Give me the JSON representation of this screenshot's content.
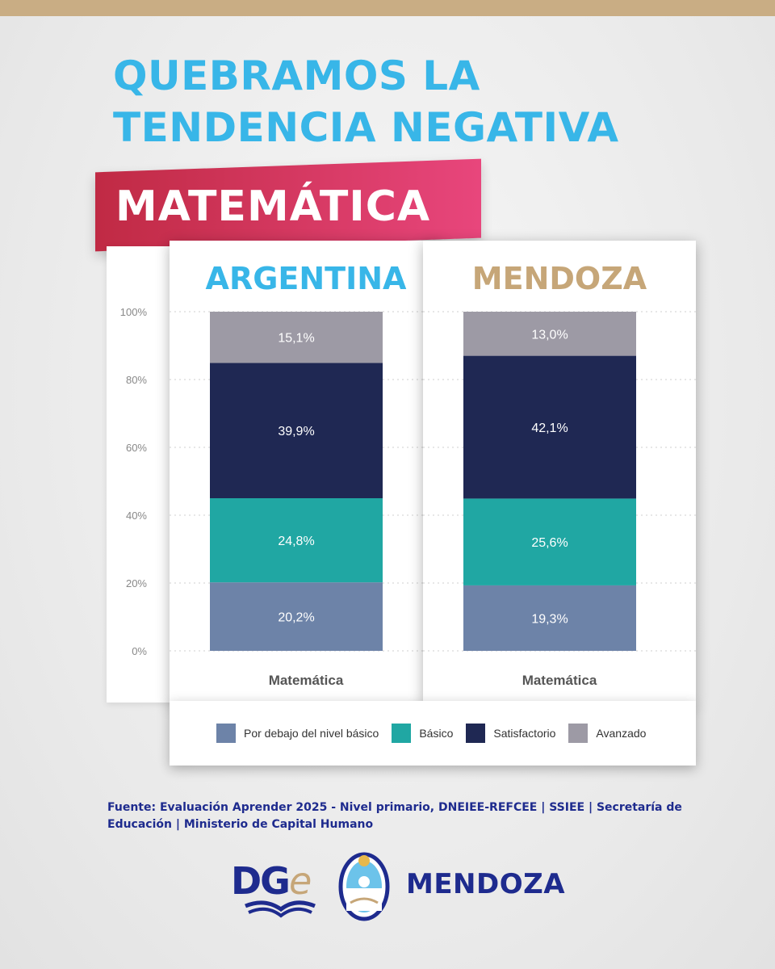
{
  "header": {
    "title_line1": "QUEBRAMOS LA",
    "title_line2": "TENDENCIA NEGATIVA",
    "subject": "MATEMÁTICA"
  },
  "colors": {
    "title": "#38b6e8",
    "ribbon": "#d8335f",
    "argentina_title": "#38b6e8",
    "mendoza_title": "#c6a678",
    "brand_blue": "#1e2b8e"
  },
  "chart_data": {
    "type": "bar",
    "stacked": true,
    "ylim": [
      0,
      100
    ],
    "yticks": [
      "0%",
      "20%",
      "40%",
      "60%",
      "80%",
      "100%"
    ],
    "grid": true,
    "legend_position": "bottom",
    "panels": [
      {
        "title": "ARGENTINA",
        "category": "Matemática",
        "values": [
          20.2,
          24.8,
          39.9,
          15.1
        ],
        "labels": [
          "20,2%",
          "24,8%",
          "39,9%",
          "15,1%"
        ]
      },
      {
        "title": "MENDOZA",
        "category": "Matemática",
        "values": [
          19.3,
          25.6,
          42.1,
          13.0
        ],
        "labels": [
          "19,3%",
          "25,6%",
          "42,1%",
          "13,0%"
        ]
      }
    ],
    "series": [
      {
        "name": "Por debajo del nivel básico",
        "color": "#6d83a8"
      },
      {
        "name": "Básico",
        "color": "#20a7a3"
      },
      {
        "name": "Satisfactorio",
        "color": "#1f2853"
      },
      {
        "name": "Avanzado",
        "color": "#9d9aa5"
      }
    ]
  },
  "footer": {
    "source": "Fuente: Evaluación Aprender 2025 - Nivel primario, DNEIEE-REFCEE | SSIEE | Secretaría de Educación | Ministerio de Capital Humano",
    "logo_dg": "DG",
    "logo_e": "e",
    "brand_word": "MENDOZA",
    "crest_icon": "mendoza-crest-icon",
    "dge_icon": "dge-book-icon"
  }
}
